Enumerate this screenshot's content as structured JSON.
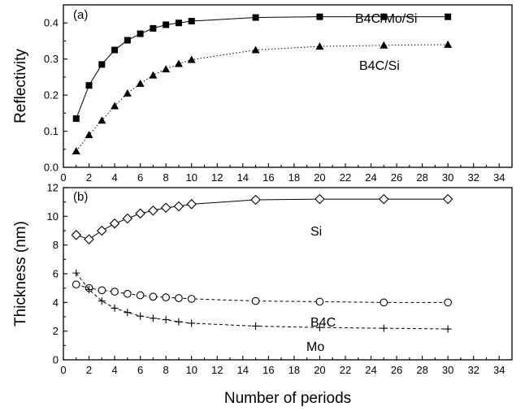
{
  "chart_data": [
    {
      "type": "line",
      "panel_label": "(a)",
      "xlabel": "",
      "ylabel": "Reflectivity",
      "xlim": [
        0,
        35
      ],
      "ylim": [
        0.0,
        0.45
      ],
      "xticks": [
        "0",
        "2",
        "4",
        "6",
        "8",
        "10",
        "12",
        "14",
        "16",
        "18",
        "20",
        "22",
        "24",
        "26",
        "28",
        "30",
        "32",
        "34"
      ],
      "yticks": [
        "0.0",
        "0.1",
        "0.2",
        "0.3",
        "0.4"
      ],
      "series": [
        {
          "name": "B4C/Mo/Si",
          "marker": "filled-square",
          "line": "solid",
          "x": [
            1,
            2,
            3,
            4,
            5,
            6,
            7,
            8,
            9,
            10,
            15,
            20,
            25,
            30
          ],
          "y": [
            0.135,
            0.227,
            0.285,
            0.325,
            0.352,
            0.37,
            0.385,
            0.395,
            0.4,
            0.405,
            0.415,
            0.417,
            0.417,
            0.417
          ]
        },
        {
          "name": "B4C/Si",
          "marker": "filled-triangle",
          "line": "dotted",
          "x": [
            1,
            2,
            3,
            4,
            5,
            6,
            7,
            8,
            9,
            10,
            15,
            20,
            25,
            30
          ],
          "y": [
            0.045,
            0.09,
            0.13,
            0.17,
            0.205,
            0.232,
            0.255,
            0.272,
            0.287,
            0.298,
            0.325,
            0.335,
            0.338,
            0.34
          ]
        }
      ]
    },
    {
      "type": "line",
      "panel_label": "(b)",
      "xlabel": "Number of periods",
      "ylabel": "Thickness (nm)",
      "xlim": [
        0,
        35
      ],
      "ylim": [
        0,
        12
      ],
      "xticks": [
        "0",
        "2",
        "4",
        "6",
        "8",
        "10",
        "12",
        "14",
        "16",
        "18",
        "20",
        "22",
        "24",
        "26",
        "28",
        "30",
        "32",
        "34"
      ],
      "yticks": [
        "0",
        "2",
        "4",
        "6",
        "8",
        "10",
        "12"
      ],
      "series": [
        {
          "name": "Si",
          "marker": "open-diamond",
          "line": "solid",
          "x": [
            1,
            2,
            3,
            4,
            5,
            6,
            7,
            8,
            9,
            10,
            15,
            20,
            25,
            30
          ],
          "y": [
            8.7,
            8.4,
            9.0,
            9.5,
            9.85,
            10.2,
            10.4,
            10.6,
            10.7,
            10.85,
            11.15,
            11.2,
            11.2,
            11.2
          ]
        },
        {
          "name": "B4C",
          "marker": "open-circle",
          "line": "dashed",
          "x": [
            1,
            2,
            3,
            4,
            5,
            6,
            7,
            8,
            9,
            10,
            15,
            20,
            25,
            30
          ],
          "y": [
            5.25,
            5.0,
            4.85,
            4.75,
            4.6,
            4.5,
            4.4,
            4.35,
            4.3,
            4.25,
            4.1,
            4.05,
            4.0,
            4.0
          ]
        },
        {
          "name": "Mo",
          "marker": "plus",
          "line": "dashed",
          "x": [
            1,
            2,
            3,
            4,
            5,
            6,
            7,
            8,
            9,
            10,
            15,
            20,
            25,
            30
          ],
          "y": [
            6.05,
            4.9,
            4.1,
            3.6,
            3.3,
            3.05,
            2.9,
            2.8,
            2.65,
            2.55,
            2.35,
            2.25,
            2.2,
            2.15
          ]
        }
      ]
    }
  ]
}
